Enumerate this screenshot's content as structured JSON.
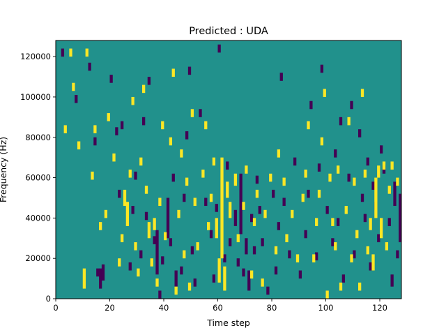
{
  "chart_data": {
    "type": "heatmap",
    "title": "Predicted : UDA",
    "xlabel": "Time step",
    "ylabel": "Frequency (Hz)",
    "xlim": [
      0,
      128
    ],
    "ylim": [
      0,
      128000
    ],
    "x_ticks": [
      0,
      20,
      40,
      60,
      80,
      100,
      120
    ],
    "y_ticks": [
      0,
      20000,
      40000,
      60000,
      80000,
      100000,
      120000
    ],
    "x_tick_labels": [
      "0",
      "20",
      "40",
      "60",
      "80",
      "100",
      "120"
    ],
    "y_tick_labels": [
      "0",
      "20000",
      "40000",
      "60000",
      "80000",
      "100000",
      "120000"
    ],
    "grid": false,
    "colormap": "viridis",
    "colors": {
      "low": "#440154",
      "mid": "#21918c",
      "high": "#fde725"
    },
    "background_class": "mid",
    "time_bins": 128,
    "freq_bins": 128,
    "freq_bin_hz": 1000,
    "cells_low": [
      [
        2,
        120000,
        124000
      ],
      [
        7,
        97000,
        101000
      ],
      [
        12,
        113000,
        117000
      ],
      [
        14,
        76000,
        80000
      ],
      [
        15,
        11000,
        15000
      ],
      [
        16,
        5000,
        15000
      ],
      [
        17,
        9000,
        17000
      ],
      [
        20,
        107000,
        111000
      ],
      [
        22,
        81000,
        85000
      ],
      [
        23,
        50000,
        54000
      ],
      [
        24,
        84000,
        88000
      ],
      [
        27,
        14000,
        18000
      ],
      [
        28,
        42000,
        46000
      ],
      [
        29,
        59000,
        63000
      ],
      [
        31,
        20000,
        24000
      ],
      [
        32,
        86000,
        90000
      ],
      [
        33,
        39000,
        43000
      ],
      [
        34,
        106000,
        110000
      ],
      [
        36,
        27000,
        31000
      ],
      [
        37,
        12000,
        34000
      ],
      [
        38,
        0,
        4000
      ],
      [
        39,
        17000,
        21000
      ],
      [
        41,
        30000,
        50000
      ],
      [
        42,
        26000,
        30000
      ],
      [
        43,
        58000,
        62000
      ],
      [
        44,
        6000,
        14000
      ],
      [
        46,
        12000,
        16000
      ],
      [
        47,
        48000,
        52000
      ],
      [
        48,
        79000,
        83000
      ],
      [
        49,
        111000,
        115000
      ],
      [
        50,
        22000,
        26000
      ],
      [
        51,
        6000,
        10000
      ],
      [
        53,
        90000,
        94000
      ],
      [
        55,
        46000,
        50000
      ],
      [
        57,
        30000,
        34000
      ],
      [
        58,
        8000,
        12000
      ],
      [
        59,
        43000,
        47000
      ],
      [
        60,
        122000,
        126000
      ],
      [
        62,
        18000,
        22000
      ],
      [
        63,
        64000,
        68000
      ],
      [
        64,
        26000,
        30000
      ],
      [
        66,
        36000,
        44000
      ],
      [
        67,
        16000,
        20000
      ],
      [
        68,
        32000,
        62000
      ],
      [
        69,
        11000,
        15000
      ],
      [
        70,
        22000,
        30000
      ],
      [
        71,
        4000,
        14000
      ],
      [
        72,
        38000,
        42000
      ],
      [
        73,
        22000,
        26000
      ],
      [
        74,
        57000,
        61000
      ],
      [
        75,
        42000,
        46000
      ],
      [
        76,
        26000,
        30000
      ],
      [
        78,
        2000,
        6000
      ],
      [
        80,
        50000,
        54000
      ],
      [
        81,
        12000,
        16000
      ],
      [
        82,
        34000,
        38000
      ],
      [
        83,
        108000,
        112000
      ],
      [
        84,
        46000,
        50000
      ],
      [
        86,
        20000,
        24000
      ],
      [
        88,
        66000,
        70000
      ],
      [
        90,
        10000,
        14000
      ],
      [
        92,
        30000,
        34000
      ],
      [
        93,
        50000,
        54000
      ],
      [
        94,
        94000,
        98000
      ],
      [
        96,
        19000,
        23000
      ],
      [
        97,
        63000,
        67000
      ],
      [
        98,
        112000,
        116000
      ],
      [
        100,
        42000,
        46000
      ],
      [
        102,
        26000,
        30000
      ],
      [
        103,
        70000,
        74000
      ],
      [
        104,
        36000,
        40000
      ],
      [
        105,
        86000,
        90000
      ],
      [
        106,
        8000,
        12000
      ],
      [
        108,
        58000,
        62000
      ],
      [
        109,
        94000,
        98000
      ],
      [
        110,
        20000,
        24000
      ],
      [
        112,
        80000,
        84000
      ],
      [
        113,
        48000,
        52000
      ],
      [
        114,
        38000,
        42000
      ],
      [
        115,
        66000,
        70000
      ],
      [
        116,
        14000,
        18000
      ],
      [
        117,
        54000,
        58000
      ],
      [
        118,
        44000,
        48000
      ],
      [
        119,
        28000,
        32000
      ],
      [
        120,
        72000,
        76000
      ],
      [
        121,
        62000,
        66000
      ],
      [
        123,
        36000,
        40000
      ],
      [
        124,
        6000,
        12000
      ],
      [
        125,
        46000,
        58000
      ],
      [
        126,
        20000,
        24000
      ],
      [
        127,
        28000,
        52000
      ]
    ],
    "cells_high": [
      [
        3,
        82000,
        86000
      ],
      [
        5,
        120000,
        124000
      ],
      [
        6,
        103000,
        107000
      ],
      [
        8,
        74000,
        78000
      ],
      [
        10,
        5000,
        15000
      ],
      [
        11,
        120000,
        124000
      ],
      [
        13,
        59000,
        63000
      ],
      [
        14,
        82000,
        86000
      ],
      [
        16,
        34000,
        38000
      ],
      [
        18,
        40000,
        44000
      ],
      [
        19,
        88000,
        92000
      ],
      [
        21,
        68000,
        72000
      ],
      [
        23,
        16000,
        20000
      ],
      [
        24,
        28000,
        32000
      ],
      [
        25,
        46000,
        54000
      ],
      [
        26,
        36000,
        48000
      ],
      [
        27,
        60000,
        64000
      ],
      [
        28,
        96000,
        100000
      ],
      [
        29,
        24000,
        28000
      ],
      [
        30,
        11000,
        15000
      ],
      [
        31,
        66000,
        70000
      ],
      [
        32,
        102000,
        106000
      ],
      [
        33,
        52000,
        56000
      ],
      [
        34,
        30000,
        38000
      ],
      [
        35,
        16000,
        20000
      ],
      [
        36,
        34000,
        40000
      ],
      [
        37,
        6000,
        10000
      ],
      [
        38,
        46000,
        50000
      ],
      [
        39,
        84000,
        88000
      ],
      [
        40,
        29000,
        33000
      ],
      [
        42,
        76000,
        80000
      ],
      [
        43,
        110000,
        114000
      ],
      [
        44,
        2000,
        6000
      ],
      [
        45,
        40000,
        44000
      ],
      [
        46,
        70000,
        74000
      ],
      [
        47,
        20000,
        24000
      ],
      [
        48,
        56000,
        60000
      ],
      [
        49,
        4000,
        8000
      ],
      [
        50,
        90000,
        94000
      ],
      [
        51,
        46000,
        50000
      ],
      [
        52,
        24000,
        28000
      ],
      [
        54,
        60000,
        64000
      ],
      [
        55,
        84000,
        88000
      ],
      [
        56,
        34000,
        38000
      ],
      [
        57,
        48000,
        52000
      ],
      [
        58,
        66000,
        70000
      ],
      [
        59,
        30000,
        40000
      ],
      [
        60,
        8000,
        20000
      ],
      [
        61,
        20000,
        70000
      ],
      [
        62,
        4000,
        16000
      ],
      [
        63,
        50000,
        58000
      ],
      [
        64,
        40000,
        48000
      ],
      [
        66,
        56000,
        62000
      ],
      [
        67,
        28000,
        32000
      ],
      [
        69,
        44000,
        48000
      ],
      [
        70,
        62000,
        66000
      ],
      [
        72,
        10000,
        14000
      ],
      [
        73,
        36000,
        40000
      ],
      [
        74,
        50000,
        54000
      ],
      [
        76,
        6000,
        10000
      ],
      [
        77,
        40000,
        44000
      ],
      [
        79,
        58000,
        62000
      ],
      [
        81,
        22000,
        26000
      ],
      [
        82,
        70000,
        74000
      ],
      [
        84,
        56000,
        60000
      ],
      [
        85,
        28000,
        32000
      ],
      [
        87,
        40000,
        44000
      ],
      [
        89,
        18000,
        22000
      ],
      [
        91,
        48000,
        52000
      ],
      [
        92,
        60000,
        64000
      ],
      [
        93,
        84000,
        88000
      ],
      [
        95,
        18000,
        22000
      ],
      [
        96,
        36000,
        40000
      ],
      [
        97,
        50000,
        54000
      ],
      [
        98,
        76000,
        80000
      ],
      [
        99,
        100000,
        104000
      ],
      [
        100,
        0,
        4000
      ],
      [
        101,
        58000,
        62000
      ],
      [
        102,
        36000,
        40000
      ],
      [
        103,
        24000,
        28000
      ],
      [
        104,
        62000,
        66000
      ],
      [
        105,
        4000,
        8000
      ],
      [
        107,
        42000,
        46000
      ],
      [
        108,
        86000,
        90000
      ],
      [
        109,
        18000,
        22000
      ],
      [
        110,
        56000,
        60000
      ],
      [
        111,
        30000,
        34000
      ],
      [
        112,
        4000,
        8000
      ],
      [
        113,
        100000,
        104000
      ],
      [
        114,
        60000,
        64000
      ],
      [
        115,
        22000,
        26000
      ],
      [
        116,
        34000,
        40000
      ],
      [
        117,
        14000,
        22000
      ],
      [
        118,
        40000,
        60000
      ],
      [
        119,
        60000,
        66000
      ],
      [
        120,
        30000,
        40000
      ],
      [
        121,
        64000,
        68000
      ],
      [
        122,
        24000,
        28000
      ],
      [
        123,
        52000,
        56000
      ],
      [
        124,
        64000,
        68000
      ],
      [
        126,
        56000,
        60000
      ]
    ]
  }
}
